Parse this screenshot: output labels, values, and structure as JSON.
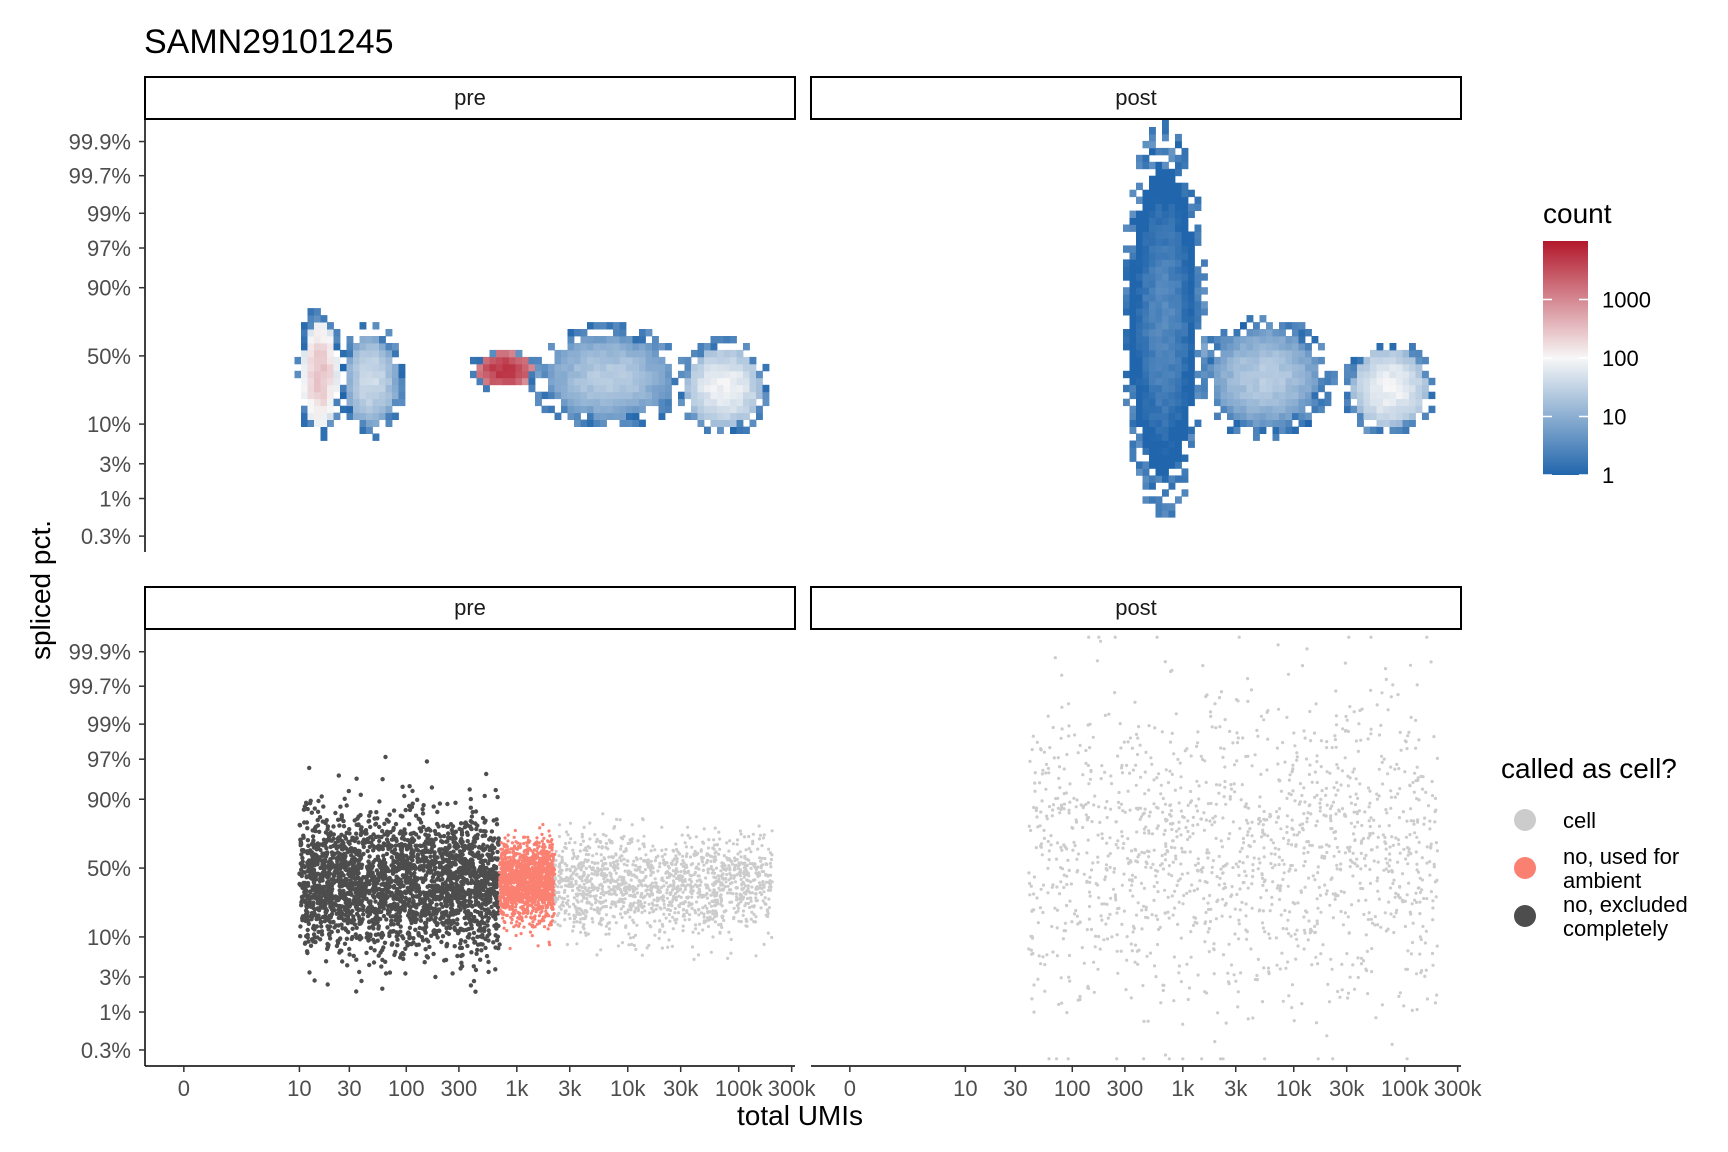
{
  "chart_data": {
    "type": "heatmap",
    "title": "SAMN29101245",
    "xlabel": "total UMIs",
    "ylabel": "spliced pct.",
    "x_scale": "log1p",
    "y_scale": "logit",
    "x_ticks": [
      {
        "value": 0,
        "label": "0"
      },
      {
        "value": 10,
        "label": "10"
      },
      {
        "value": 30,
        "label": "30"
      },
      {
        "value": 100,
        "label": "100"
      },
      {
        "value": 300,
        "label": "300"
      },
      {
        "value": 1000,
        "label": "1k"
      },
      {
        "value": 3000,
        "label": "3k"
      },
      {
        "value": 10000,
        "label": "10k"
      },
      {
        "value": 30000,
        "label": "30k"
      },
      {
        "value": 100000,
        "label": "100k"
      },
      {
        "value": 300000,
        "label": "300k"
      }
    ],
    "y_ticks": [
      {
        "value": 0.999,
        "label": "99.9%"
      },
      {
        "value": 0.997,
        "label": "99.7%"
      },
      {
        "value": 0.99,
        "label": "99%"
      },
      {
        "value": 0.97,
        "label": "97%"
      },
      {
        "value": 0.9,
        "label": "90%"
      },
      {
        "value": 0.5,
        "label": "50%"
      },
      {
        "value": 0.1,
        "label": "10%"
      },
      {
        "value": 0.03,
        "label": "3%"
      },
      {
        "value": 0.01,
        "label": "1%"
      },
      {
        "value": 0.003,
        "label": "0.3%"
      }
    ],
    "facets": [
      "pre",
      "post"
    ],
    "count_legend": {
      "title": "count",
      "scale": "log10",
      "range": [
        1,
        10000
      ],
      "ticks": [
        {
          "value": 1,
          "label": "1"
        },
        {
          "value": 10,
          "label": "10"
        },
        {
          "value": 100,
          "label": "100"
        },
        {
          "value": 1000,
          "label": "1000"
        }
      ],
      "low_color": "#2166ac",
      "mid_color": "#f7f7f7",
      "high_color": "#b2182b"
    },
    "density_regions": {
      "pre": [
        {
          "x_range": [
            10,
            25
          ],
          "y_range": [
            0.07,
            0.8
          ],
          "peak": 300
        },
        {
          "x_range": [
            25,
            90
          ],
          "y_range": [
            0.08,
            0.7
          ],
          "peak": 40
        },
        {
          "x_range": [
            400,
            1500
          ],
          "y_range": [
            0.25,
            0.55
          ],
          "peak": 6000
        },
        {
          "x_range": [
            1500,
            30000
          ],
          "y_range": [
            0.1,
            0.7
          ],
          "peak": 25
        },
        {
          "x_range": [
            30000,
            180000
          ],
          "y_range": [
            0.08,
            0.6
          ],
          "peak": 90
        }
      ],
      "post": [
        {
          "x_range": [
            300,
            1500
          ],
          "y_range": [
            0.01,
            0.999
          ],
          "peak": 3
        },
        {
          "x_range": [
            1500,
            20000
          ],
          "y_range": [
            0.08,
            0.75
          ],
          "peak": 25
        },
        {
          "x_range": [
            30000,
            180000
          ],
          "y_range": [
            0.08,
            0.6
          ],
          "peak": 90
        }
      ]
    },
    "cell_legend": {
      "title": "called as cell?",
      "entries": [
        {
          "label_lines": [
            "cell"
          ],
          "color": "#cccccc"
        },
        {
          "label_lines": [
            "no, used for",
            "ambient"
          ],
          "color": "#fa8072"
        },
        {
          "label_lines": [
            "no, excluded",
            "completely"
          ],
          "color": "#4d4d4d"
        }
      ]
    },
    "point_groups": {
      "pre": [
        {
          "class": "no, excluded completely",
          "x_range": [
            10,
            700
          ],
          "y_range": [
            0.04,
            0.9
          ],
          "color": "#4d4d4d"
        },
        {
          "class": "no, used for ambient",
          "x_range": [
            700,
            2200
          ],
          "y_range": [
            0.12,
            0.75
          ],
          "color": "#fa8072"
        },
        {
          "class": "cell",
          "x_range": [
            2200,
            200000
          ],
          "y_range": [
            0.08,
            0.8
          ],
          "color": "#cccccc"
        }
      ],
      "post": [
        {
          "class": "cell",
          "x_range": [
            40,
            200000
          ],
          "y_range": [
            0.003,
            0.999
          ],
          "color": "#cccccc"
        }
      ]
    }
  }
}
